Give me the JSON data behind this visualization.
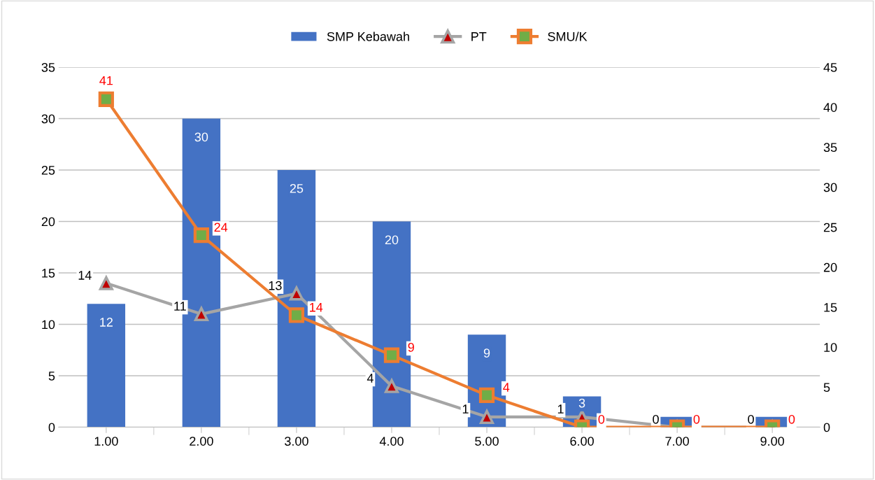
{
  "chart_data": {
    "type": "bar",
    "categories": [
      "1.00",
      "2.00",
      "3.00",
      "4.00",
      "5.00",
      "6.00",
      "7.00",
      "9.00"
    ],
    "series": [
      {
        "name": "SMP Kebawah",
        "color": "#4472c4",
        "values": [
          12,
          30,
          25,
          20,
          9,
          3,
          1,
          1
        ],
        "value_labels": [
          "12",
          "30",
          "25",
          "20",
          "9",
          "3",
          null,
          null
        ]
      },
      {
        "name": "PT",
        "type": "line",
        "color": "#a5a5a5",
        "marker": "triangle",
        "values": [
          14,
          11,
          13,
          4,
          1,
          1,
          0,
          0
        ],
        "value_labels": [
          "14",
          "11",
          "13",
          "4",
          "1",
          "1",
          "0",
          "0"
        ]
      },
      {
        "name": "SMU/K",
        "type": "line",
        "color": "#ed7d31",
        "marker": "square",
        "axis": "y2",
        "values": [
          41,
          24,
          14,
          9,
          4,
          0,
          0,
          0
        ],
        "value_labels": [
          "41",
          "24",
          "14",
          "9",
          "4",
          "0",
          "0",
          "0"
        ]
      }
    ],
    "ylim": [
      0,
      35
    ],
    "yticks": [
      0,
      5,
      10,
      15,
      20,
      25,
      30,
      35
    ],
    "y2lim": [
      0,
      45
    ],
    "y2ticks": [
      0,
      5,
      10,
      15,
      20,
      25,
      30,
      35,
      40,
      45
    ],
    "grid": "y",
    "legend": "top",
    "line_style": "solid"
  }
}
